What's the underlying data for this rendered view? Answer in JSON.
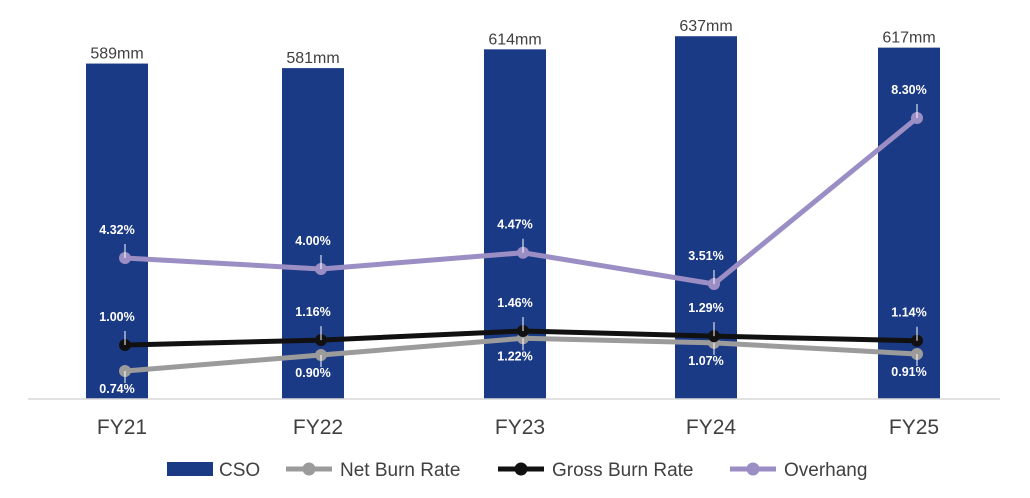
{
  "chart_data": {
    "type": "bar",
    "title": "",
    "xlabel": "",
    "ylabel": "",
    "categories": [
      "FY21",
      "FY22",
      "FY23",
      "FY24",
      "FY25"
    ],
    "bars": {
      "name": "CSO",
      "values": [
        589,
        581,
        614,
        637,
        617
      ],
      "labels": [
        "589mm",
        "581mm",
        "614mm",
        "637mm",
        "617mm"
      ],
      "color": "#1b3a85",
      "ylim": [
        0,
        660
      ]
    },
    "series": [
      {
        "name": "Net Burn Rate",
        "type": "line",
        "values": [
          0.74,
          0.9,
          1.22,
          1.07,
          0.91
        ],
        "labels": [
          "0.74%",
          "0.90%",
          "1.22%",
          "1.07%",
          "0.91%"
        ],
        "color": "#9b9b9b",
        "label_position": "below"
      },
      {
        "name": "Gross Burn Rate",
        "type": "line",
        "values": [
          1.0,
          1.16,
          1.46,
          1.29,
          1.14
        ],
        "labels": [
          "1.00%",
          "1.16%",
          "1.46%",
          "1.29%",
          "1.14%"
        ],
        "color": "#111111",
        "label_position": "above"
      },
      {
        "name": "Overhang",
        "type": "line",
        "values": [
          4.32,
          4.0,
          4.47,
          3.51,
          8.3
        ],
        "labels": [
          "4.32%",
          "4.00%",
          "4.47%",
          "3.51%",
          "8.30%"
        ],
        "color": "#9b8ec4",
        "label_position": "above"
      }
    ],
    "legend": {
      "position": "bottom",
      "entries": [
        "CSO",
        "Net Burn Rate",
        "Gross Burn Rate",
        "Overhang"
      ]
    },
    "grid": false
  }
}
